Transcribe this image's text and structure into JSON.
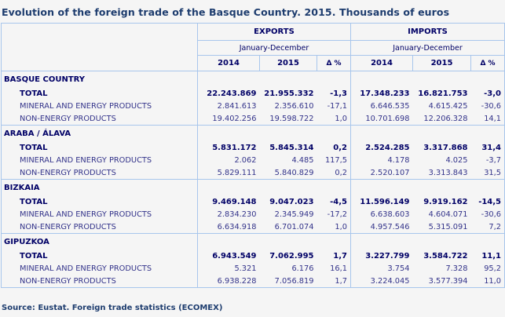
{
  "title": "Evolution of the foreign trade of the Basque Country. 2015.  Thousands of euros",
  "header": {
    "exports": "EXPORTS",
    "imports": "IMPORTS",
    "period_exports": "January-December",
    "period_imports": "January-December",
    "years": [
      "2014",
      "2015"
    ],
    "delta": "Δ %"
  },
  "sections": [
    {
      "region": "BASQUE COUNTRY",
      "rows": [
        {
          "label": "TOTAL",
          "exp_2014": "22.243.869",
          "exp_2015": "21.955.332",
          "exp_delta": "-1,3",
          "imp_2014": "17.348.233",
          "imp_2015": "16.821.753",
          "imp_delta": "-3,0"
        },
        {
          "label": "MINERAL AND ENERGY PRODUCTS",
          "exp_2014": "2.841.613",
          "exp_2015": "2.356.610",
          "exp_delta": "-17,1",
          "imp_2014": "6.646.535",
          "imp_2015": "4.615.425",
          "imp_delta": "-30,6"
        },
        {
          "label": "NON-ENERGY PRODUCTS",
          "exp_2014": "19.402.256",
          "exp_2015": "19.598.722",
          "exp_delta": "1,0",
          "imp_2014": "10.701.698",
          "imp_2015": "12.206.328",
          "imp_delta": "14,1"
        }
      ]
    },
    {
      "region": "ARABA / ÁLAVA",
      "rows": [
        {
          "label": "TOTAL",
          "exp_2014": "5.831.172",
          "exp_2015": "5.845.314",
          "exp_delta": "0,2",
          "imp_2014": "2.524.285",
          "imp_2015": "3.317.868",
          "imp_delta": "31,4"
        },
        {
          "label": "MINERAL AND ENERGY PRODUCTS",
          "exp_2014": "2.062",
          "exp_2015": "4.485",
          "exp_delta": "117,5",
          "imp_2014": "4.178",
          "imp_2015": "4.025",
          "imp_delta": "-3,7"
        },
        {
          "label": "NON-ENERGY PRODUCTS",
          "exp_2014": "5.829.111",
          "exp_2015": "5.840.829",
          "exp_delta": "0,2",
          "imp_2014": "2.520.107",
          "imp_2015": "3.313.843",
          "imp_delta": "31,5"
        }
      ]
    },
    {
      "region": "BIZKAIA",
      "rows": [
        {
          "label": "TOTAL",
          "exp_2014": "9.469.148",
          "exp_2015": "9.047.023",
          "exp_delta": "-4,5",
          "imp_2014": "11.596.149",
          "imp_2015": "9.919.162",
          "imp_delta": "-14,5"
        },
        {
          "label": "MINERAL AND ENERGY PRODUCTS",
          "exp_2014": "2.834.230",
          "exp_2015": "2.345.949",
          "exp_delta": "-17,2",
          "imp_2014": "6.638.603",
          "imp_2015": "4.604.071",
          "imp_delta": "-30,6"
        },
        {
          "label": "NON-ENERGY PRODUCTS",
          "exp_2014": "6.634.918",
          "exp_2015": "6.701.074",
          "exp_delta": "1,0",
          "imp_2014": "4.957.546",
          "imp_2015": "5.315.091",
          "imp_delta": "7,2"
        }
      ]
    },
    {
      "region": "GIPUZKOA",
      "rows": [
        {
          "label": "TOTAL",
          "exp_2014": "6.943.549",
          "exp_2015": "7.062.995",
          "exp_delta": "1,7",
          "imp_2014": "3.227.799",
          "imp_2015": "3.584.722",
          "imp_delta": "11,1"
        },
        {
          "label": "MINERAL AND ENERGY PRODUCTS",
          "exp_2014": "5.321",
          "exp_2015": "6.176",
          "exp_delta": "16,1",
          "imp_2014": "3.754",
          "imp_2015": "7.328",
          "imp_delta": "95,2"
        },
        {
          "label": "NON-ENERGY PRODUCTS",
          "exp_2014": "6.938.228",
          "exp_2015": "7.056.819",
          "exp_delta": "1,7",
          "imp_2014": "3.224.045",
          "imp_2015": "3.577.394",
          "imp_delta": "11,0"
        }
      ]
    }
  ],
  "source": "Source: Eustat. Foreign trade statistics (ECOMEX)"
}
